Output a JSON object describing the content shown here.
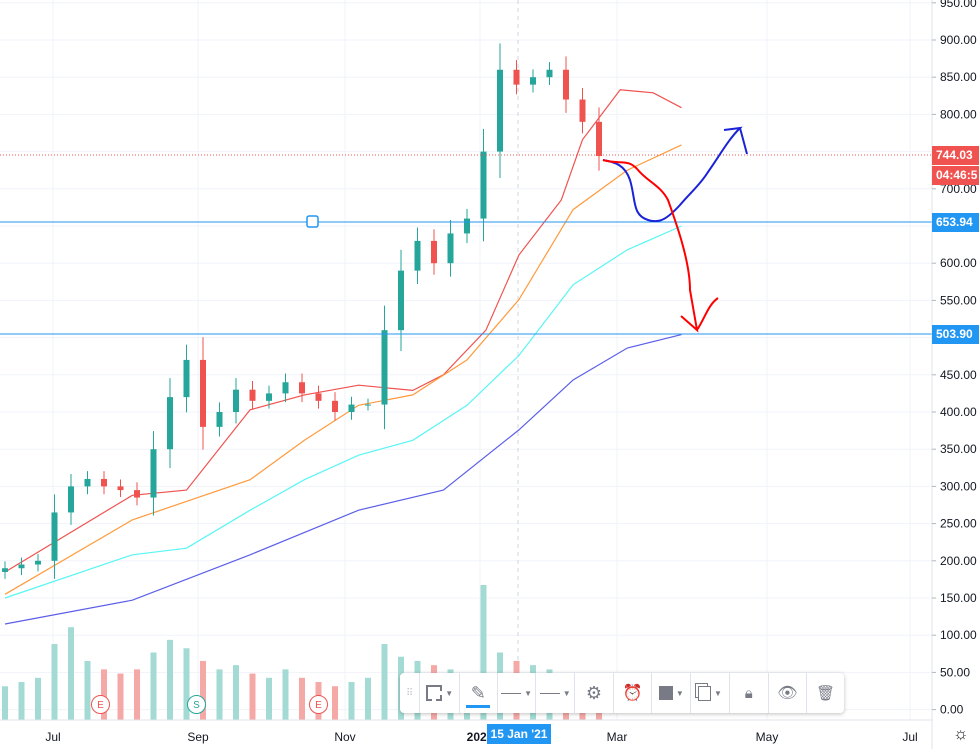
{
  "chart_data": {
    "type": "candlestick",
    "symbol_interval": "weekly-sampled",
    "y_axis": {
      "ticks": [
        "950.00",
        "900.00",
        "850.00",
        "800.00",
        "750.00",
        "700.00",
        "650.00",
        "600.00",
        "550.00",
        "500.00",
        "450.00",
        "400.00",
        "350.00",
        "300.00",
        "250.00",
        "200.00",
        "150.00",
        "100.00",
        "50.00",
        "0.00"
      ],
      "range": [
        0,
        950
      ]
    },
    "x_axis": {
      "ticks": [
        "Jul",
        "Sep",
        "Nov",
        "2021",
        "Mar",
        "May",
        "Jul"
      ],
      "crosshair_label": "15 Jan '21"
    },
    "dates": [
      "2020-06-12",
      "2020-06-19",
      "2020-06-26",
      "2020-07-03",
      "2020-07-10",
      "2020-07-17",
      "2020-07-24",
      "2020-07-31",
      "2020-08-07",
      "2020-08-14",
      "2020-08-21",
      "2020-08-28",
      "2020-09-04",
      "2020-09-11",
      "2020-09-18",
      "2020-09-25",
      "2020-10-02",
      "2020-10-09",
      "2020-10-16",
      "2020-10-23",
      "2020-10-30",
      "2020-11-06",
      "2020-11-13",
      "2020-11-20",
      "2020-11-27",
      "2020-12-04",
      "2020-12-11",
      "2020-12-18",
      "2020-12-25",
      "2021-01-01",
      "2021-01-08",
      "2021-01-15",
      "2021-01-22",
      "2021-01-29",
      "2021-02-05",
      "2021-02-12",
      "2021-02-19"
    ],
    "close": [
      190,
      195,
      200,
      265,
      300,
      310,
      300,
      295,
      285,
      350,
      420,
      470,
      380,
      400,
      430,
      415,
      425,
      440,
      425,
      415,
      400,
      410,
      410,
      510,
      590,
      630,
      600,
      640,
      660,
      750,
      860,
      840,
      850,
      860,
      820,
      790,
      744
    ],
    "volume": [
      40,
      45,
      50,
      90,
      110,
      70,
      60,
      55,
      60,
      80,
      95,
      85,
      70,
      60,
      65,
      55,
      50,
      60,
      50,
      45,
      40,
      45,
      50,
      90,
      75,
      70,
      65,
      60,
      55,
      160,
      80,
      70,
      65,
      60,
      55,
      50,
      45
    ],
    "moving_averages": [
      {
        "color": "#f0524f",
        "points": [
          [
            "2020-06-12",
            185
          ],
          [
            "2020-08-05",
            288
          ],
          [
            "2020-08-28",
            295
          ],
          [
            "2020-09-24",
            403
          ],
          [
            "2020-10-17",
            423
          ],
          [
            "2020-11-09",
            436
          ],
          [
            "2020-12-02",
            429
          ],
          [
            "2020-12-15",
            450
          ],
          [
            "2021-01-02",
            510
          ],
          [
            "2021-01-16",
            611
          ],
          [
            "2021-02-03",
            685
          ],
          [
            "2021-02-12",
            766
          ],
          [
            "2021-02-28",
            833
          ],
          [
            "2021-03-14",
            829
          ],
          [
            "2021-03-26",
            809
          ]
        ]
      },
      {
        "color": "#ff9a3c",
        "points": [
          [
            "2020-06-12",
            155
          ],
          [
            "2020-08-05",
            255
          ],
          [
            "2020-09-24",
            309
          ],
          [
            "2020-10-17",
            362
          ],
          [
            "2020-11-09",
            409
          ],
          [
            "2020-12-02",
            423
          ],
          [
            "2020-12-25",
            470
          ],
          [
            "2021-01-16",
            551
          ],
          [
            "2021-02-08",
            672
          ],
          [
            "2021-03-03",
            725
          ],
          [
            "2021-03-26",
            759
          ]
        ]
      },
      {
        "color": "#59f5f5",
        "points": [
          [
            "2020-06-12",
            150
          ],
          [
            "2020-08-05",
            208
          ],
          [
            "2020-08-28",
            217
          ],
          [
            "2020-09-24",
            268
          ],
          [
            "2020-10-17",
            309
          ],
          [
            "2020-11-09",
            342
          ],
          [
            "2020-12-02",
            362
          ],
          [
            "2020-12-25",
            409
          ],
          [
            "2021-01-16",
            476
          ],
          [
            "2021-02-08",
            571
          ],
          [
            "2021-03-03",
            618
          ],
          [
            "2021-03-26",
            650
          ]
        ]
      },
      {
        "color": "#5b5fe8",
        "points": [
          [
            "2020-06-12",
            115
          ],
          [
            "2020-08-05",
            147
          ],
          [
            "2020-09-24",
            208
          ],
          [
            "2020-11-09",
            268
          ],
          [
            "2020-12-15",
            295
          ],
          [
            "2021-01-16",
            376
          ],
          [
            "2021-02-08",
            443
          ],
          [
            "2021-03-03",
            486
          ],
          [
            "2021-03-26",
            504
          ]
        ]
      }
    ],
    "last_price": "744.03",
    "countdown": "04:46:5",
    "horizontal_lines": [
      "653.94",
      "503.90"
    ],
    "events": [
      "E",
      "S",
      "E"
    ],
    "colors": {
      "up": "#26a69a",
      "down": "#ef5350",
      "hline": "#2196f3",
      "last": "#f0524f"
    }
  },
  "toolbar": {
    "items": [
      "select-area",
      "pen",
      "line-style",
      "line-width",
      "settings",
      "add-alert",
      "fill",
      "clone",
      "lock",
      "visibility",
      "delete"
    ]
  }
}
